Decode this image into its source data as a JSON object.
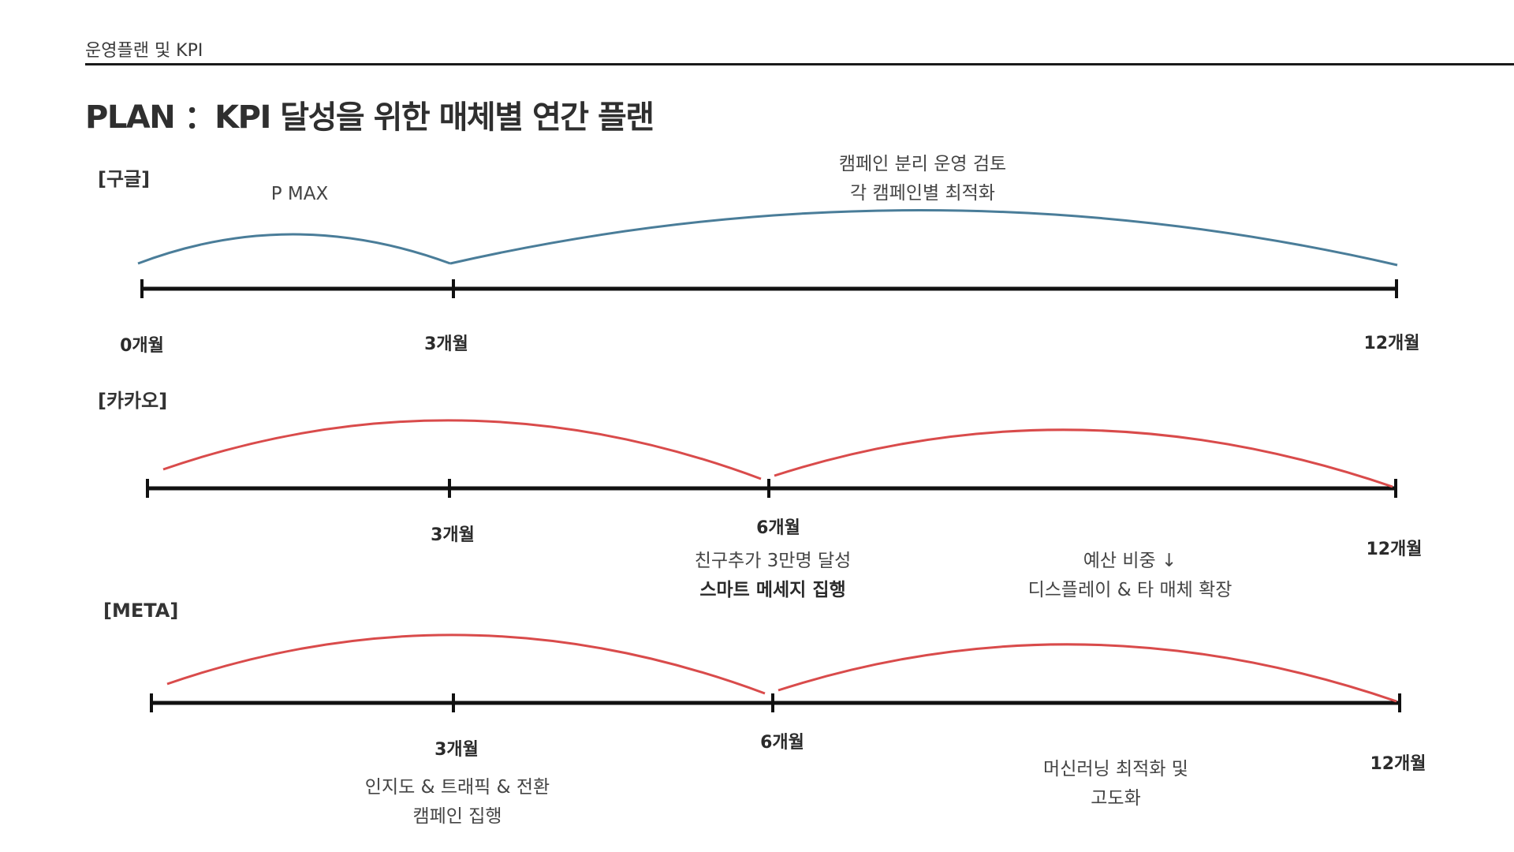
{
  "header": {
    "title": "운영플랜 및 KPI"
  },
  "main_title": "PLAN ：KPI 달성을 위한 매체별 연간 플랜",
  "colors": {
    "google_arc": "#4a7d99",
    "red_arc": "#d94b4b",
    "axis": "#111111"
  },
  "timelines": [
    {
      "label": "[구글]",
      "ticks": [
        {
          "month": 0,
          "label": "0개월"
        },
        {
          "month": 3,
          "label": "3개월"
        },
        {
          "month": 12,
          "label": "12개월"
        }
      ],
      "phases": [
        {
          "from": 0,
          "to": 3,
          "lines": [
            "P MAX"
          ]
        },
        {
          "from": 3,
          "to": 12,
          "lines": [
            "캠페인 분리 운영 검토",
            "각 캠페인별 최적화"
          ]
        }
      ]
    },
    {
      "label": "[카카오]",
      "ticks": [
        {
          "month": 0,
          "label": ""
        },
        {
          "month": 3,
          "label": "3개월"
        },
        {
          "month": 6,
          "label": "6개월"
        },
        {
          "month": 12,
          "label": "12개월"
        }
      ],
      "phases": [
        {
          "from": 0,
          "to": 6,
          "lines": [
            "친구추가 3만명 달성",
            "스마트 메세지 집행"
          ]
        },
        {
          "from": 6,
          "to": 12,
          "lines": [
            "예산 비중 ↓",
            "디스플레이 & 타 매체 확장"
          ]
        }
      ]
    },
    {
      "label": "[META]",
      "ticks": [
        {
          "month": 0,
          "label": ""
        },
        {
          "month": 3,
          "label": "3개월"
        },
        {
          "month": 6,
          "label": "6개월"
        },
        {
          "month": 12,
          "label": "12개월"
        }
      ],
      "phases": [
        {
          "from": 0,
          "to": 6,
          "lines": [
            "인지도 & 트래픽 &  전환",
            "캠페인 집행"
          ]
        },
        {
          "from": 6,
          "to": 12,
          "lines": [
            "머신러닝 최적화 및",
            "고도화"
          ]
        }
      ]
    }
  ]
}
